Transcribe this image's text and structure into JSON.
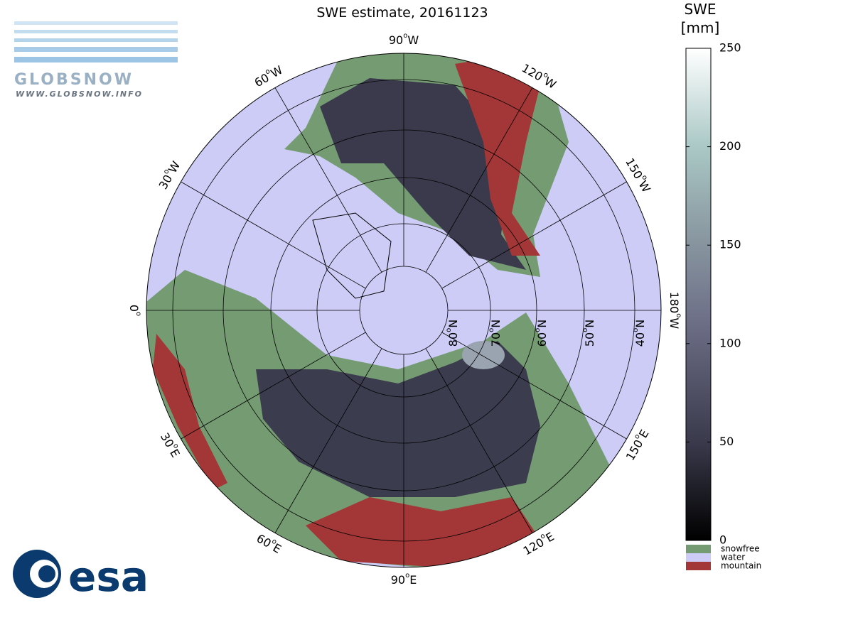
{
  "title": "SWE estimate, 20161123",
  "colorbar": {
    "title_lines": [
      "SWE",
      "[mm]"
    ],
    "lim": [
      0,
      250
    ],
    "ticks": [
      0,
      50,
      100,
      150,
      200,
      250
    ]
  },
  "legend": [
    {
      "label": "snowfree",
      "color": "#759b72"
    },
    {
      "label": "water",
      "color": "#ccccf6"
    },
    {
      "label": "mountain",
      "color": "#a33636"
    }
  ],
  "meridian_labels": [
    {
      "number": "90",
      "sup": "o",
      "suffix": "W"
    },
    {
      "number": "120",
      "sup": "o",
      "suffix": "W"
    },
    {
      "number": "150",
      "sup": "o",
      "suffix": "W"
    },
    {
      "number": "180",
      "sup": "o",
      "suffix": "W"
    },
    {
      "number": "150",
      "sup": "o",
      "suffix": "E"
    },
    {
      "number": "120",
      "sup": "o",
      "suffix": "E"
    },
    {
      "number": "90",
      "sup": "o",
      "suffix": "E"
    },
    {
      "number": "60",
      "sup": "o",
      "suffix": "E"
    },
    {
      "number": "30",
      "sup": "o",
      "suffix": "E"
    },
    {
      "number": "0",
      "sup": "o"
    },
    {
      "number": "30",
      "sup": "o",
      "suffix": "W"
    },
    {
      "number": "60",
      "sup": "o",
      "suffix": "W"
    }
  ],
  "parallel_labels": [
    {
      "number": "80",
      "sup": "o",
      "suffix": "N"
    },
    {
      "number": "70",
      "sup": "o",
      "suffix": "N"
    },
    {
      "number": "60",
      "sup": "o",
      "suffix": "N"
    },
    {
      "number": "50",
      "sup": "o",
      "suffix": "N"
    },
    {
      "number": "40",
      "sup": "o",
      "suffix": "N"
    }
  ],
  "logos": {
    "globsnow": "GLOBSNOW",
    "globsnow_url": "WWW.GLOBSNOW.INFO",
    "esa": "esa"
  }
}
